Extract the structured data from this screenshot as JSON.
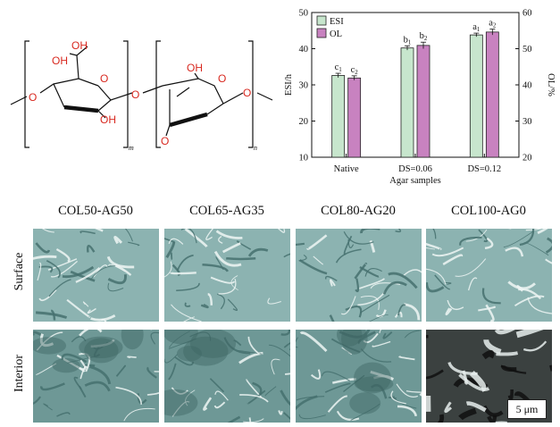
{
  "structure": {
    "labels": {
      "oh_top": "OH",
      "oh_left": "OH",
      "oh_bottom": "OH",
      "ring_o1": "O",
      "ring_o2": "O",
      "link_o_left": "O",
      "link_o_mid": "O",
      "link_o_right": "O",
      "oh_right_unit": "OH",
      "bridge_o": "O",
      "sub_m": "m",
      "sub_n": "n"
    }
  },
  "chart_data": {
    "type": "bar",
    "categories": [
      "Native",
      "DS=0.06",
      "DS=0.12"
    ],
    "xlabel": "Agar samples",
    "ylabel": "ESI/h",
    "ylabel_right": "OL/%",
    "ylim": [
      10,
      50
    ],
    "ylim_right": [
      20,
      60
    ],
    "yticks": [
      "10",
      "20",
      "30",
      "40",
      "50"
    ],
    "yticks_right": [
      "20",
      "30",
      "40",
      "50",
      "60"
    ],
    "legend_position": "top-left",
    "series": [
      {
        "name": "ESI",
        "axis": "left",
        "color": "#c7e6cd",
        "values": [
          32.6,
          40.2,
          43.8
        ],
        "errors": [
          0.6,
          0.6,
          0.5
        ],
        "sig": [
          [
            "c",
            "1"
          ],
          [
            "b",
            "1"
          ],
          [
            "a",
            "1"
          ]
        ]
      },
      {
        "name": "OL",
        "axis": "right",
        "color": "#c882c0",
        "values": [
          41.9,
          50.9,
          54.6
        ],
        "errors": [
          0.6,
          0.9,
          0.8
        ],
        "sig": [
          [
            "c",
            "2"
          ],
          [
            "b",
            "2"
          ],
          [
            "a",
            "2"
          ]
        ]
      }
    ]
  },
  "micrographs": {
    "columns": [
      "COL50-AG50",
      "COL65-AG35",
      "COL80-AG20",
      "COL100-AG0"
    ],
    "rows": [
      "Surface",
      "Interior"
    ],
    "scale_bar": "5 μm",
    "tint": "#8ab0ae"
  }
}
